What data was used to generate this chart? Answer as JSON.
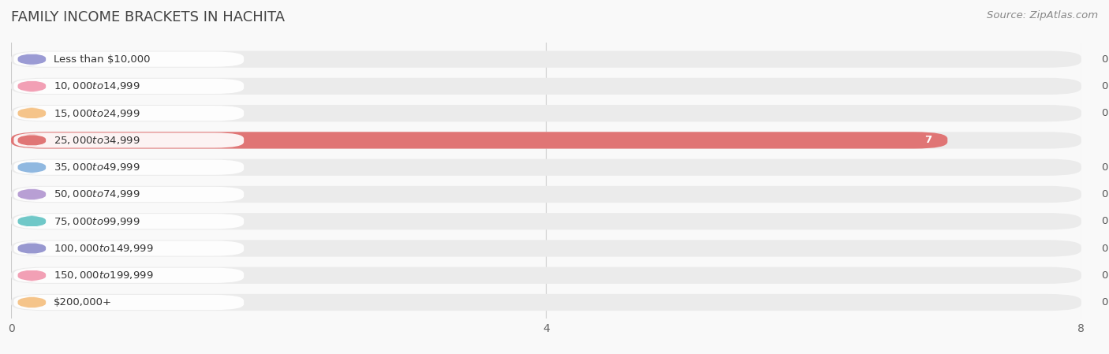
{
  "title": "FAMILY INCOME BRACKETS IN HACHITA",
  "source": "Source: ZipAtlas.com",
  "categories": [
    "Less than $10,000",
    "$10,000 to $14,999",
    "$15,000 to $24,999",
    "$25,000 to $34,999",
    "$35,000 to $49,999",
    "$50,000 to $74,999",
    "$75,000 to $99,999",
    "$100,000 to $149,999",
    "$150,000 to $199,999",
    "$200,000+"
  ],
  "values": [
    0,
    0,
    0,
    7,
    0,
    0,
    0,
    0,
    0,
    0
  ],
  "bar_colors": [
    "#9b9bd4",
    "#f2a0b5",
    "#f5c48a",
    "#e07575",
    "#90b8e0",
    "#b89fd4",
    "#70c8c8",
    "#9898d0",
    "#f2a0b5",
    "#f5c48a"
  ],
  "background_color": "#f9f9f9",
  "row_bg_color": "#ebebeb",
  "xlim_max": 8,
  "xticks": [
    0,
    4,
    8
  ],
  "title_fontsize": 13,
  "label_fontsize": 9.5,
  "tick_fontsize": 10,
  "source_fontsize": 9.5
}
